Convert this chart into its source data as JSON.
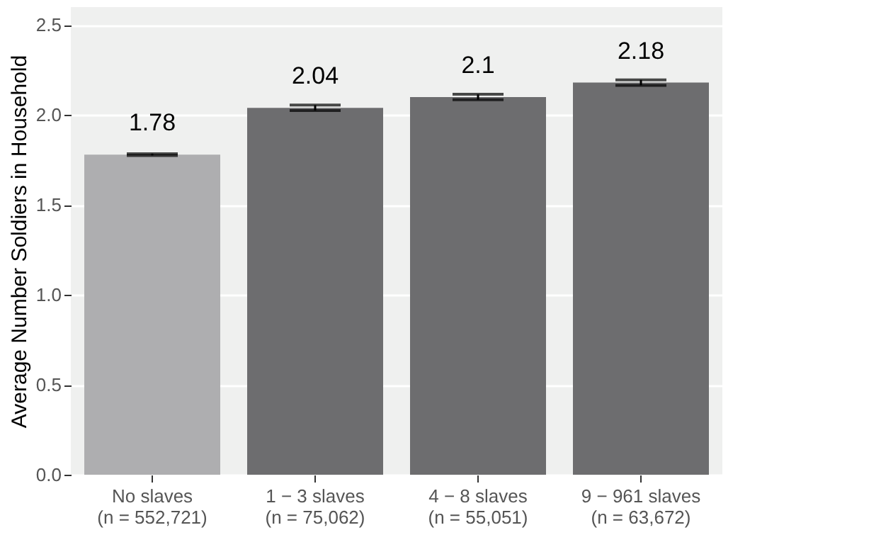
{
  "chart_data": {
    "type": "bar",
    "ylabel": "Average Number Soldiers in Household",
    "categories": [
      "No slaves\n(n = 552,721)",
      "1 − 3 slaves\n(n =  75,062)",
      "4 − 8 slaves\n(n =  55,051)",
      "9 − 961 slaves\n(n =  63,672)"
    ],
    "values": [
      1.78,
      2.04,
      2.1,
      2.18
    ],
    "colors": [
      "#aeaeb0",
      "#6d6d6f",
      "#6d6d6f",
      "#6d6d6f"
    ],
    "errors": [
      0.005,
      0.015,
      0.015,
      0.015
    ],
    "data_labels": true,
    "ylim": [
      0,
      2.6
    ],
    "yticks": [
      {
        "value": 0,
        "label": "0.0"
      },
      {
        "value": 0.5,
        "label": "0.5"
      },
      {
        "value": 1,
        "label": "1.0"
      },
      {
        "value": 1.5,
        "label": "1.5"
      },
      {
        "value": 2,
        "label": "2.0"
      },
      {
        "value": 2.5,
        "label": "2.5"
      }
    ],
    "grid": "y"
  }
}
